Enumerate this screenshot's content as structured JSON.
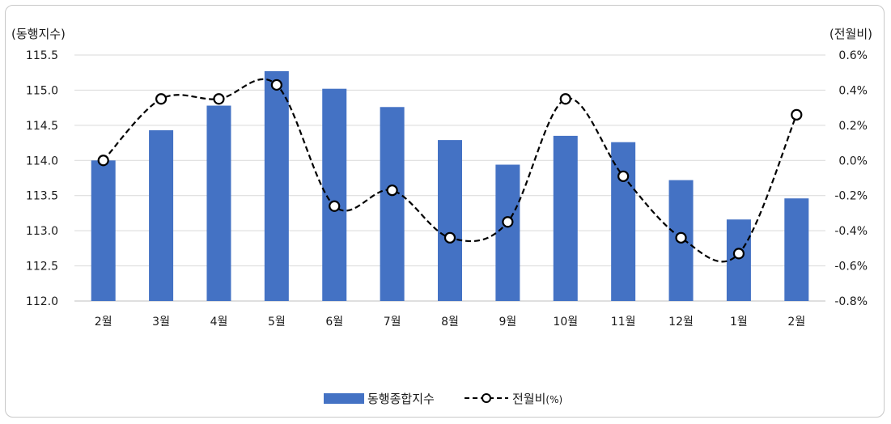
{
  "chart_data": {
    "type": "bar",
    "categories": [
      "2월",
      "3월",
      "4월",
      "5월",
      "6월",
      "7월",
      "8월",
      "9월",
      "10월",
      "11월",
      "12월",
      "1월",
      "2월"
    ],
    "series": [
      {
        "name": "동행종합지수",
        "type": "bar",
        "axis": "left",
        "color": "#4472C4",
        "values": [
          114.0,
          114.43,
          114.78,
          115.27,
          115.02,
          114.76,
          114.29,
          113.94,
          114.35,
          114.26,
          113.72,
          113.16,
          113.46
        ]
      },
      {
        "name": "전월비",
        "legend_suffix": "(%)",
        "type": "line",
        "style": "dashed-smooth-circle-markers",
        "axis": "right",
        "color": "#000000",
        "values": [
          0.0,
          0.35,
          0.35,
          0.43,
          -0.26,
          -0.17,
          -0.44,
          -0.35,
          0.35,
          -0.09,
          -0.44,
          -0.53,
          0.26
        ]
      }
    ],
    "left_axis": {
      "unit_label": "(동행지수)",
      "ylim": [
        112.0,
        115.5
      ],
      "ticks": [
        "115.5",
        "115.0",
        "114.5",
        "114.0",
        "113.5",
        "113.0",
        "112.5",
        "112.0"
      ]
    },
    "right_axis": {
      "unit_label": "(전월비)",
      "ylim": [
        -0.8,
        0.6
      ],
      "ticks": [
        "0.6%",
        "0.4%",
        "0.2%",
        "0.0%",
        "-0.2%",
        "-0.4%",
        "-0.6%",
        "-0.8%"
      ]
    },
    "grid": true,
    "legend_position": "bottom-center"
  }
}
